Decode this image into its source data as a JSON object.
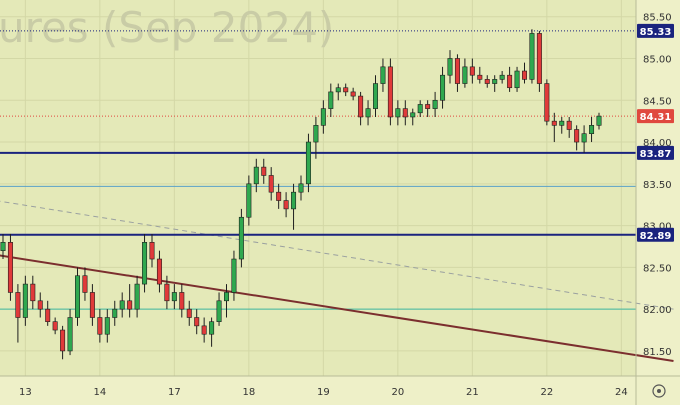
{
  "chart_data": {
    "type": "candlestick",
    "title": "",
    "watermark": "ures (Sep 2024)",
    "y_axis": {
      "min": 81.2,
      "max": 85.7,
      "ticks": [
        "85.50",
        "85.00",
        "84.50",
        "84.00",
        "83.50",
        "83.00",
        "82.50",
        "82.00",
        "81.50"
      ]
    },
    "x_axis": {
      "labels": [
        {
          "label": "13",
          "i": 3
        },
        {
          "label": "14",
          "i": 13
        },
        {
          "label": "17",
          "i": 23
        },
        {
          "label": "18",
          "i": 33
        },
        {
          "label": "19",
          "i": 43
        },
        {
          "label": "20",
          "i": 53
        },
        {
          "label": "21",
          "i": 63
        },
        {
          "label": "22",
          "i": 73
        },
        {
          "label": "24",
          "i": 83
        }
      ]
    },
    "levels": [
      {
        "value": "85.33",
        "price": 85.33,
        "style": "dotted-dark",
        "label_bg": "#1a237e"
      },
      {
        "value": "84.31",
        "price": 84.31,
        "style": "dotted-red",
        "label_bg": "#e0483e"
      },
      {
        "value": "83.87",
        "price": 83.87,
        "style": "solid-navy",
        "label_bg": "#1a237e"
      },
      {
        "value": "82.89",
        "price": 82.89,
        "style": "solid-navy",
        "label_bg": "#1a237e"
      }
    ],
    "extra_lines": [
      {
        "name": "thin-blue-level",
        "price": 83.47,
        "color": "#5aa0c8"
      },
      {
        "name": "teal-level",
        "price": 82.0,
        "color": "#3fb8a0"
      }
    ],
    "trendlines": [
      {
        "name": "descending-trendline",
        "from": {
          "i": -1,
          "p": 82.65
        },
        "to": {
          "i": 90,
          "p": 81.38
        },
        "color": "#7b2e2e"
      },
      {
        "name": "dashed-trendline",
        "from": {
          "i": -1,
          "p": 83.3
        },
        "to": {
          "i": 90,
          "p": 82.0
        },
        "color": "#9aa0a0"
      }
    ],
    "candles": [
      [
        82.7,
        82.9,
        82.6,
        82.8
      ],
      [
        82.8,
        82.9,
        82.1,
        82.2
      ],
      [
        82.2,
        82.3,
        81.6,
        81.9
      ],
      [
        81.9,
        82.4,
        81.8,
        82.3
      ],
      [
        82.3,
        82.4,
        82.0,
        82.1
      ],
      [
        82.1,
        82.2,
        81.9,
        82.0
      ],
      [
        82.0,
        82.1,
        81.8,
        81.85
      ],
      [
        81.85,
        81.9,
        81.7,
        81.75
      ],
      [
        81.75,
        81.8,
        81.4,
        81.5
      ],
      [
        81.5,
        82.0,
        81.45,
        81.9
      ],
      [
        81.9,
        82.5,
        81.8,
        82.4
      ],
      [
        82.4,
        82.5,
        82.1,
        82.2
      ],
      [
        82.2,
        82.3,
        81.8,
        81.9
      ],
      [
        81.9,
        82.0,
        81.6,
        81.7
      ],
      [
        81.7,
        82.0,
        81.6,
        81.9
      ],
      [
        81.9,
        82.1,
        81.8,
        82.0
      ],
      [
        82.0,
        82.2,
        81.9,
        82.1
      ],
      [
        82.1,
        82.3,
        81.9,
        82.0
      ],
      [
        82.0,
        82.4,
        81.9,
        82.3
      ],
      [
        82.3,
        82.9,
        82.2,
        82.8
      ],
      [
        82.8,
        82.9,
        82.5,
        82.6
      ],
      [
        82.6,
        82.7,
        82.2,
        82.3
      ],
      [
        82.3,
        82.4,
        82.0,
        82.1
      ],
      [
        82.1,
        82.3,
        82.0,
        82.2
      ],
      [
        82.2,
        82.3,
        81.9,
        82.0
      ],
      [
        82.0,
        82.1,
        81.8,
        81.9
      ],
      [
        81.9,
        82.0,
        81.7,
        81.8
      ],
      [
        81.8,
        81.9,
        81.6,
        81.7
      ],
      [
        81.7,
        81.9,
        81.55,
        81.85
      ],
      [
        81.85,
        82.2,
        81.8,
        82.1
      ],
      [
        82.1,
        82.3,
        81.9,
        82.2
      ],
      [
        82.2,
        82.7,
        82.1,
        82.6
      ],
      [
        82.6,
        83.2,
        82.5,
        83.1
      ],
      [
        83.1,
        83.6,
        83.0,
        83.5
      ],
      [
        83.5,
        83.8,
        83.4,
        83.7
      ],
      [
        83.7,
        83.8,
        83.5,
        83.6
      ],
      [
        83.6,
        83.7,
        83.3,
        83.4
      ],
      [
        83.4,
        83.5,
        83.2,
        83.3
      ],
      [
        83.3,
        83.4,
        83.1,
        83.2
      ],
      [
        83.2,
        83.5,
        82.95,
        83.4
      ],
      [
        83.4,
        83.6,
        83.3,
        83.5
      ],
      [
        83.5,
        84.1,
        83.4,
        84.0
      ],
      [
        84.0,
        84.3,
        83.8,
        84.2
      ],
      [
        84.2,
        84.5,
        84.1,
        84.4
      ],
      [
        84.4,
        84.7,
        84.3,
        84.6
      ],
      [
        84.6,
        84.7,
        84.5,
        84.65
      ],
      [
        84.65,
        84.7,
        84.55,
        84.6
      ],
      [
        84.6,
        84.65,
        84.5,
        84.55
      ],
      [
        84.55,
        84.6,
        84.2,
        84.3
      ],
      [
        84.3,
        84.5,
        84.2,
        84.4
      ],
      [
        84.4,
        84.8,
        84.3,
        84.7
      ],
      [
        84.7,
        85.0,
        84.6,
        84.9
      ],
      [
        84.9,
        85.0,
        84.2,
        84.3
      ],
      [
        84.3,
        84.5,
        84.2,
        84.4
      ],
      [
        84.4,
        84.5,
        84.2,
        84.3
      ],
      [
        84.3,
        84.4,
        84.2,
        84.35
      ],
      [
        84.35,
        84.5,
        84.3,
        84.45
      ],
      [
        84.45,
        84.5,
        84.3,
        84.4
      ],
      [
        84.4,
        84.6,
        84.3,
        84.5
      ],
      [
        84.5,
        84.9,
        84.4,
        84.8
      ],
      [
        84.8,
        85.1,
        84.7,
        85.0
      ],
      [
        85.0,
        85.05,
        84.6,
        84.7
      ],
      [
        84.7,
        85.0,
        84.65,
        84.9
      ],
      [
        84.9,
        85.0,
        84.7,
        84.8
      ],
      [
        84.8,
        84.9,
        84.7,
        84.75
      ],
      [
        84.75,
        84.8,
        84.65,
        84.7
      ],
      [
        84.7,
        84.8,
        84.6,
        84.75
      ],
      [
        84.75,
        84.85,
        84.7,
        84.8
      ],
      [
        84.8,
        84.9,
        84.6,
        84.65
      ],
      [
        84.65,
        84.9,
        84.6,
        84.85
      ],
      [
        84.85,
        84.95,
        84.7,
        84.75
      ],
      [
        84.75,
        85.35,
        84.7,
        85.3
      ],
      [
        85.3,
        85.33,
        84.6,
        84.7
      ],
      [
        84.7,
        84.75,
        84.2,
        84.25
      ],
      [
        84.25,
        84.35,
        84.0,
        84.2
      ],
      [
        84.2,
        84.3,
        84.1,
        84.25
      ],
      [
        84.25,
        84.3,
        84.05,
        84.15
      ],
      [
        84.15,
        84.2,
        83.9,
        84.0
      ],
      [
        84.0,
        84.2,
        83.87,
        84.1
      ],
      [
        84.1,
        84.3,
        84.0,
        84.2
      ],
      [
        84.2,
        84.35,
        84.15,
        84.31
      ]
    ]
  }
}
